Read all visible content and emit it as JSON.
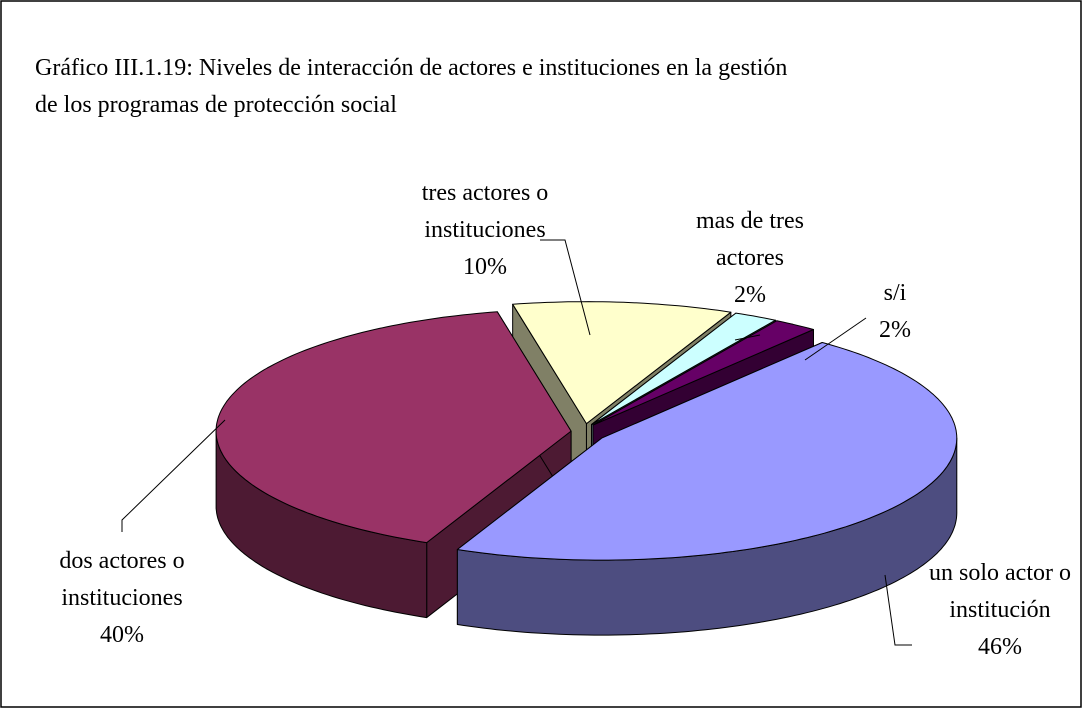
{
  "chart_data": {
    "type": "pie3d",
    "title": "Gráfico III.1.19: Niveles de interacción de actores e instituciones en la gestión de los programas de protección social",
    "categories": [
      "tres actores o instituciones",
      "mas de tres actores",
      "s/i",
      "un solo actor o institución",
      "dos actores o instituciones"
    ],
    "values": [
      10,
      2,
      2,
      46,
      40
    ],
    "value_labels": [
      "10%",
      "2%",
      "2%",
      "46%",
      "40%"
    ],
    "colors": [
      "#ffffcc",
      "#ccffff",
      "#660066",
      "#9999ff",
      "#993366"
    ]
  }
}
